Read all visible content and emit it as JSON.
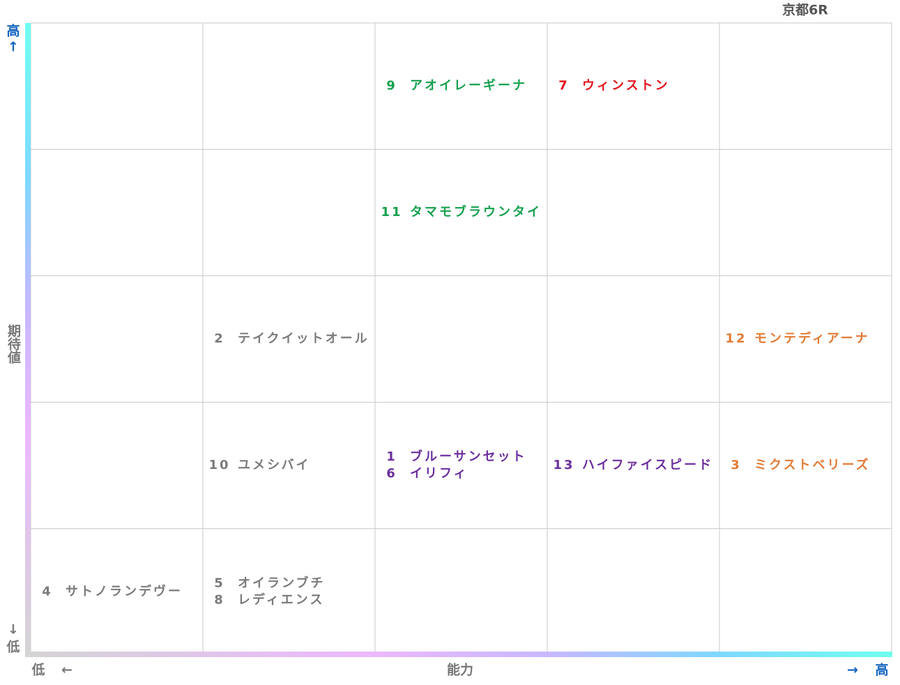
{
  "title": "京都6R",
  "y_axis": {
    "high": "高",
    "up_arrow": "↑",
    "label": "期待値",
    "down_arrow": "↓",
    "low": "低"
  },
  "x_axis": {
    "low": "低",
    "left_arrow": "←",
    "label": "能力",
    "right_arrow": "→",
    "high": "高"
  },
  "grid": {
    "rows": [
      [
        [],
        [],
        [
          {
            "number": "9",
            "name": "アオイレーギーナ",
            "color": "#14a04c"
          }
        ],
        [
          {
            "number": "7",
            "name": "ウィンストン",
            "color": "#e3101c"
          }
        ],
        []
      ],
      [
        [],
        [],
        [
          {
            "number": "11",
            "name": "タマモブラウンタイ",
            "color": "#14a04c"
          }
        ],
        [],
        []
      ],
      [
        [],
        [
          {
            "number": "2",
            "name": "テイクイットオール",
            "color": "#7a7a7a"
          }
        ],
        [],
        [],
        [
          {
            "number": "12",
            "name": "モンテディアーナ",
            "color": "#e27a34"
          }
        ]
      ],
      [
        [],
        [
          {
            "number": "10",
            "name": "ユメシバイ",
            "color": "#7a7a7a"
          }
        ],
        [
          {
            "number": "1",
            "name": "ブルーサンセット",
            "color": "#6b2f9e"
          },
          {
            "number": "6",
            "name": "イリフィ",
            "color": "#6b2f9e"
          }
        ],
        [
          {
            "number": "13",
            "name": "ハイファイスピード",
            "color": "#6b2f9e"
          }
        ],
        [
          {
            "number": "3",
            "name": "ミクストベリーズ",
            "color": "#e27a34"
          }
        ]
      ],
      [
        [
          {
            "number": "4",
            "name": "サトノランデヴー",
            "color": "#7a7a7a"
          }
        ],
        [
          {
            "number": "5",
            "name": "オイランブチ",
            "color": "#7a7a7a"
          },
          {
            "number": "8",
            "name": "レディエンス",
            "color": "#7a7a7a"
          }
        ],
        [],
        [],
        []
      ]
    ]
  }
}
